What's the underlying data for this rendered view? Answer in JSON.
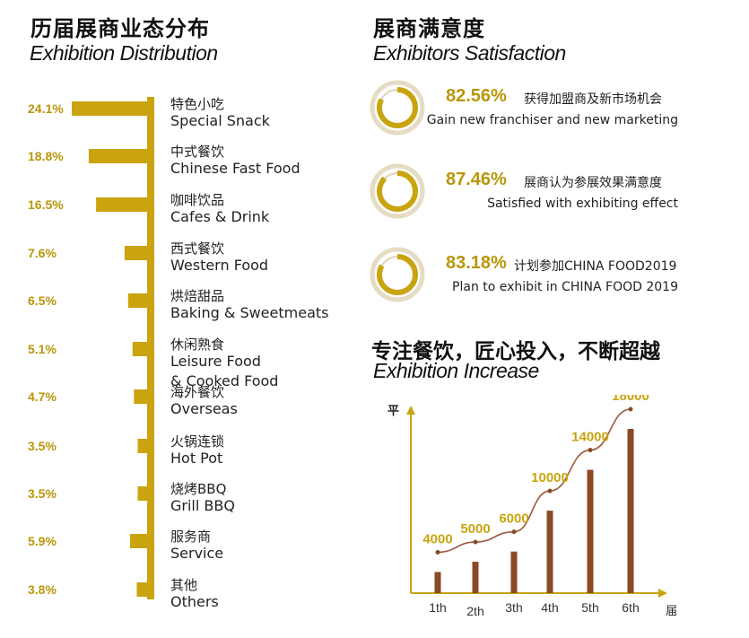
{
  "left_header": {
    "title_cn": "历届展商业态分布",
    "title_en": "Exhibition Distribution"
  },
  "right_header": {
    "title_cn": "展商满意度",
    "title_en": "Exhibitors Satisfaction"
  },
  "increase_header": {
    "title_cn": "专注餐饮，匠心投入，不断超越",
    "title_en": "Exhibition Increase"
  },
  "colors": {
    "gold": "#c9a40f",
    "gold_text": "#b8960a",
    "brown_bar": "#8b4a23",
    "line": "#9b5a3c"
  },
  "satisfaction": [
    {
      "pct": "82.56%",
      "cn": "获得加盟商及新市场机会",
      "en": "Gain new franchiser and new marketing",
      "value": 82.56
    },
    {
      "pct": "87.46%",
      "cn": "展商认为参展效果满意度",
      "en": "Satisfied with exhibiting effect",
      "value": 87.46
    },
    {
      "pct": "83.18%",
      "cn": "计划参加CHINA FOOD2019",
      "en": "Plan to exhibit in CHINA FOOD 2019",
      "value": 83.18
    }
  ],
  "chart_data": [
    {
      "type": "bar",
      "orientation": "horizontal",
      "title": "Exhibition Distribution",
      "categories": [
        {
          "cn": "特色小吃",
          "en": "Special Snack",
          "pct": "24.1%",
          "value": 24.1
        },
        {
          "cn": "中式餐饮",
          "en": "Chinese Fast Food",
          "pct": "18.8%",
          "value": 18.8
        },
        {
          "cn": "咖啡饮品",
          "en": "Cafes & Drink",
          "pct": "16.5%",
          "value": 16.5
        },
        {
          "cn": "西式餐饮",
          "en": "Western Food",
          "pct": "7.6%",
          "value": 7.6
        },
        {
          "cn": "烘焙甜品",
          "en": "Baking & Sweetmeats",
          "pct": "6.5%",
          "value": 6.5
        },
        {
          "cn": "休闲熟食",
          "en": "Leisure Food",
          "en2": "& Cooked Food",
          "pct": "5.1%",
          "value": 5.1
        },
        {
          "cn": "海外餐饮",
          "en": "Overseas",
          "pct": "4.7%",
          "value": 4.7
        },
        {
          "cn": "火锅连锁",
          "en": "Hot Pot",
          "pct": "3.5%",
          "value": 3.5
        },
        {
          "cn": "烧烤BBQ",
          "en": "Grill BBQ",
          "pct": "3.5%",
          "value": 3.5
        },
        {
          "cn": "服务商",
          "en": "Service",
          "pct": "5.9%",
          "value": 5.9
        },
        {
          "cn": "其他",
          "en": "Others",
          "pct": "3.8%",
          "value": 3.8
        }
      ]
    },
    {
      "type": "bar+line",
      "title": "Exhibition Increase",
      "ylabel": "平",
      "xlabel": "届",
      "categories": [
        "1th",
        "2th",
        "3th",
        "4th",
        "5th",
        "6th"
      ],
      "values": [
        4000,
        5000,
        6000,
        10000,
        14000,
        18000
      ],
      "value_labels": [
        "4000",
        "5000",
        "6000",
        "10000",
        "14000",
        "18000"
      ]
    }
  ]
}
